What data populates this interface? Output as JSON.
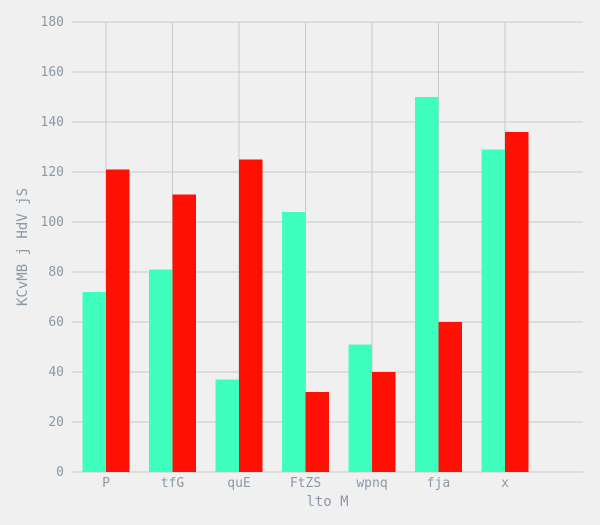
{
  "chart_data": {
    "type": "bar",
    "title": "",
    "xlabel": "lto M",
    "ylabel": "KCvMB j HdV jS",
    "categories": [
      "P",
      "tfG",
      "quE",
      "FtZS",
      "wpnq",
      "fja",
      "x"
    ],
    "series": [
      {
        "color": "#3fffbf",
        "values": [
          72,
          81,
          37,
          104,
          51,
          150,
          129
        ]
      },
      {
        "color": "#ff1005",
        "values": [
          121,
          111,
          125,
          32,
          40,
          60,
          136
        ]
      }
    ],
    "ylim": [
      0,
      180
    ],
    "yticks": [
      0,
      20,
      40,
      60,
      80,
      100,
      120,
      140,
      160,
      180
    ],
    "grid": true,
    "background": "#f0f0f0"
  }
}
